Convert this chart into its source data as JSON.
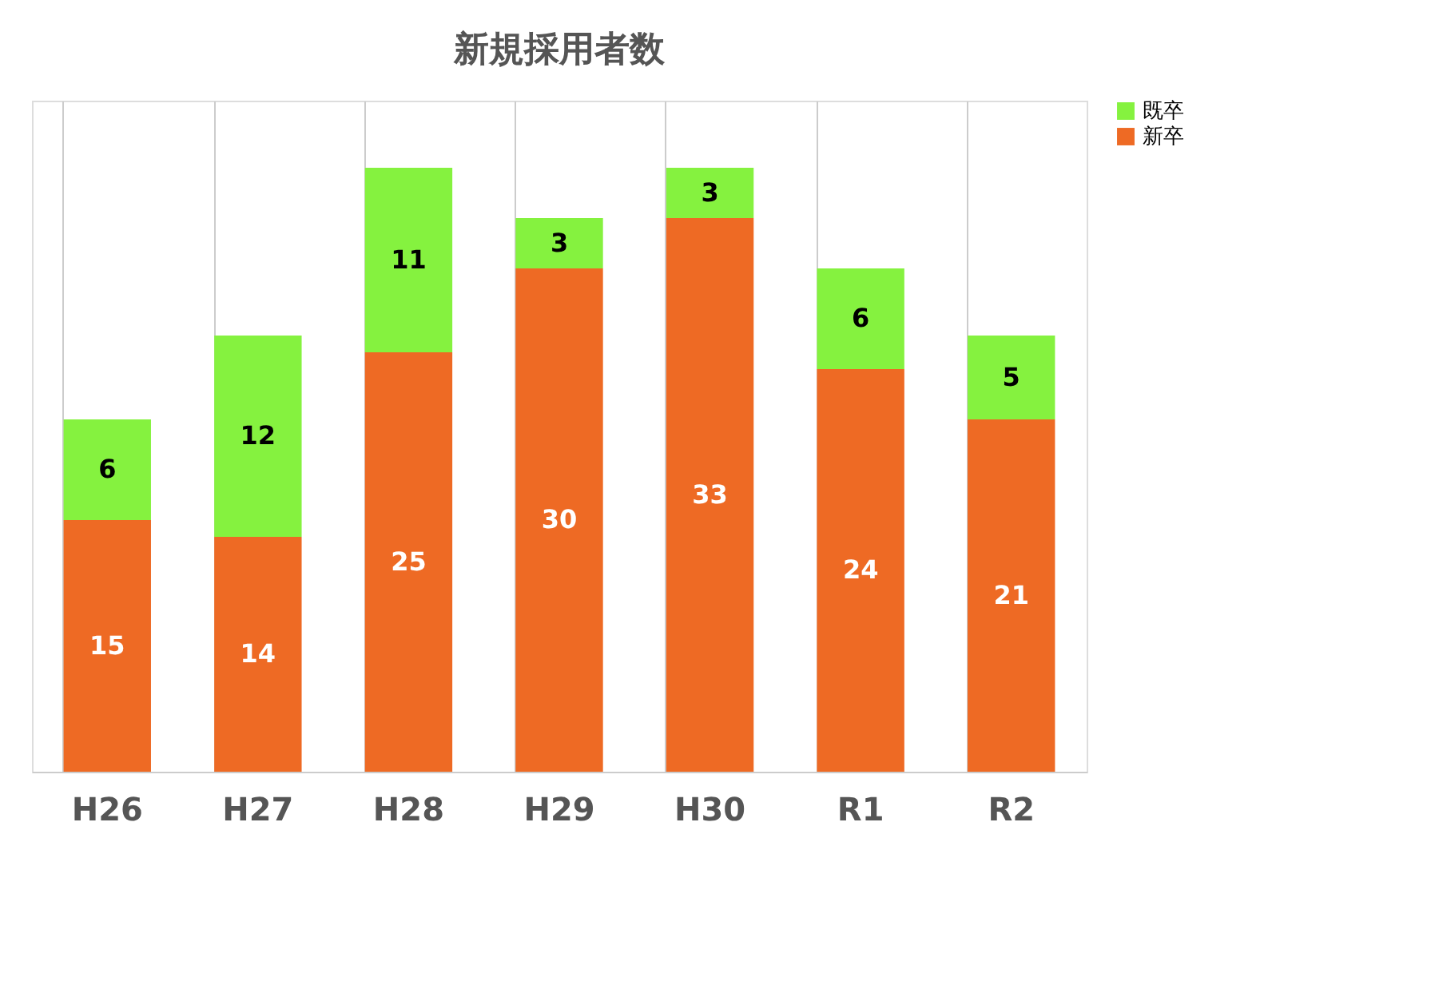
{
  "chart_data": {
    "type": "bar",
    "title": "新規採用者数",
    "categories": [
      "H26",
      "H27",
      "H28",
      "H29",
      "H30",
      "R1",
      "R2"
    ],
    "stacked": true,
    "data_labels": true,
    "legend": "right",
    "grid": "x",
    "series": [
      {
        "name": "新卒",
        "color": "#ee6a24",
        "values": [
          15,
          14,
          25,
          30,
          33,
          24,
          21
        ]
      },
      {
        "name": "既卒",
        "color": "#85f23f",
        "values": [
          6,
          12,
          11,
          3,
          3,
          6,
          5
        ]
      }
    ]
  }
}
